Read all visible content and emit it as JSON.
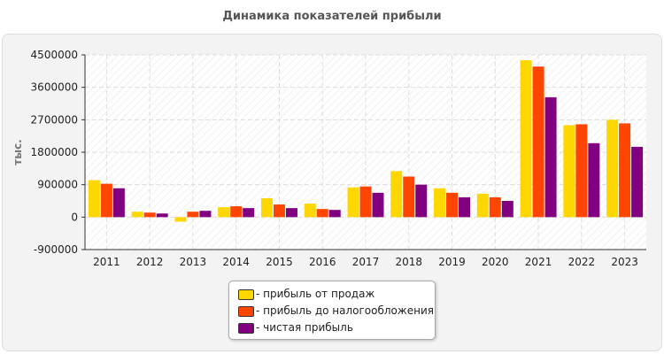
{
  "chart_data": {
    "type": "bar",
    "title": "Динамика показателей прибыли",
    "ylabel": "тыс.",
    "xlabel": "",
    "ylim": [
      -900000,
      4500000
    ],
    "yticks": [
      "-900000",
      "0",
      "900000",
      "1800000",
      "2700000",
      "3600000",
      "4500000"
    ],
    "grid": true,
    "legend_position": "bottom",
    "categories": [
      "2011",
      "2012",
      "2013",
      "2014",
      "2015",
      "2016",
      "2017",
      "2018",
      "2019",
      "2020",
      "2021",
      "2022",
      "2023"
    ],
    "series": [
      {
        "name": "- прибыль от продаж",
        "color": "#ffd700",
        "values": [
          1025000,
          150000,
          -125000,
          275000,
          525000,
          375000,
          825000,
          1275000,
          800000,
          650000,
          4350000,
          2550000,
          2700000
        ]
      },
      {
        "name": "- прибыль до налогообложения",
        "color": "#ff4500",
        "values": [
          925000,
          125000,
          150000,
          300000,
          350000,
          225000,
          850000,
          1125000,
          675000,
          550000,
          4175000,
          2575000,
          2600000
        ]
      },
      {
        "name": "- чистая прибыль",
        "color": "#800080",
        "values": [
          800000,
          100000,
          175000,
          250000,
          250000,
          200000,
          675000,
          900000,
          550000,
          450000,
          3325000,
          2050000,
          1950000
        ]
      }
    ]
  }
}
